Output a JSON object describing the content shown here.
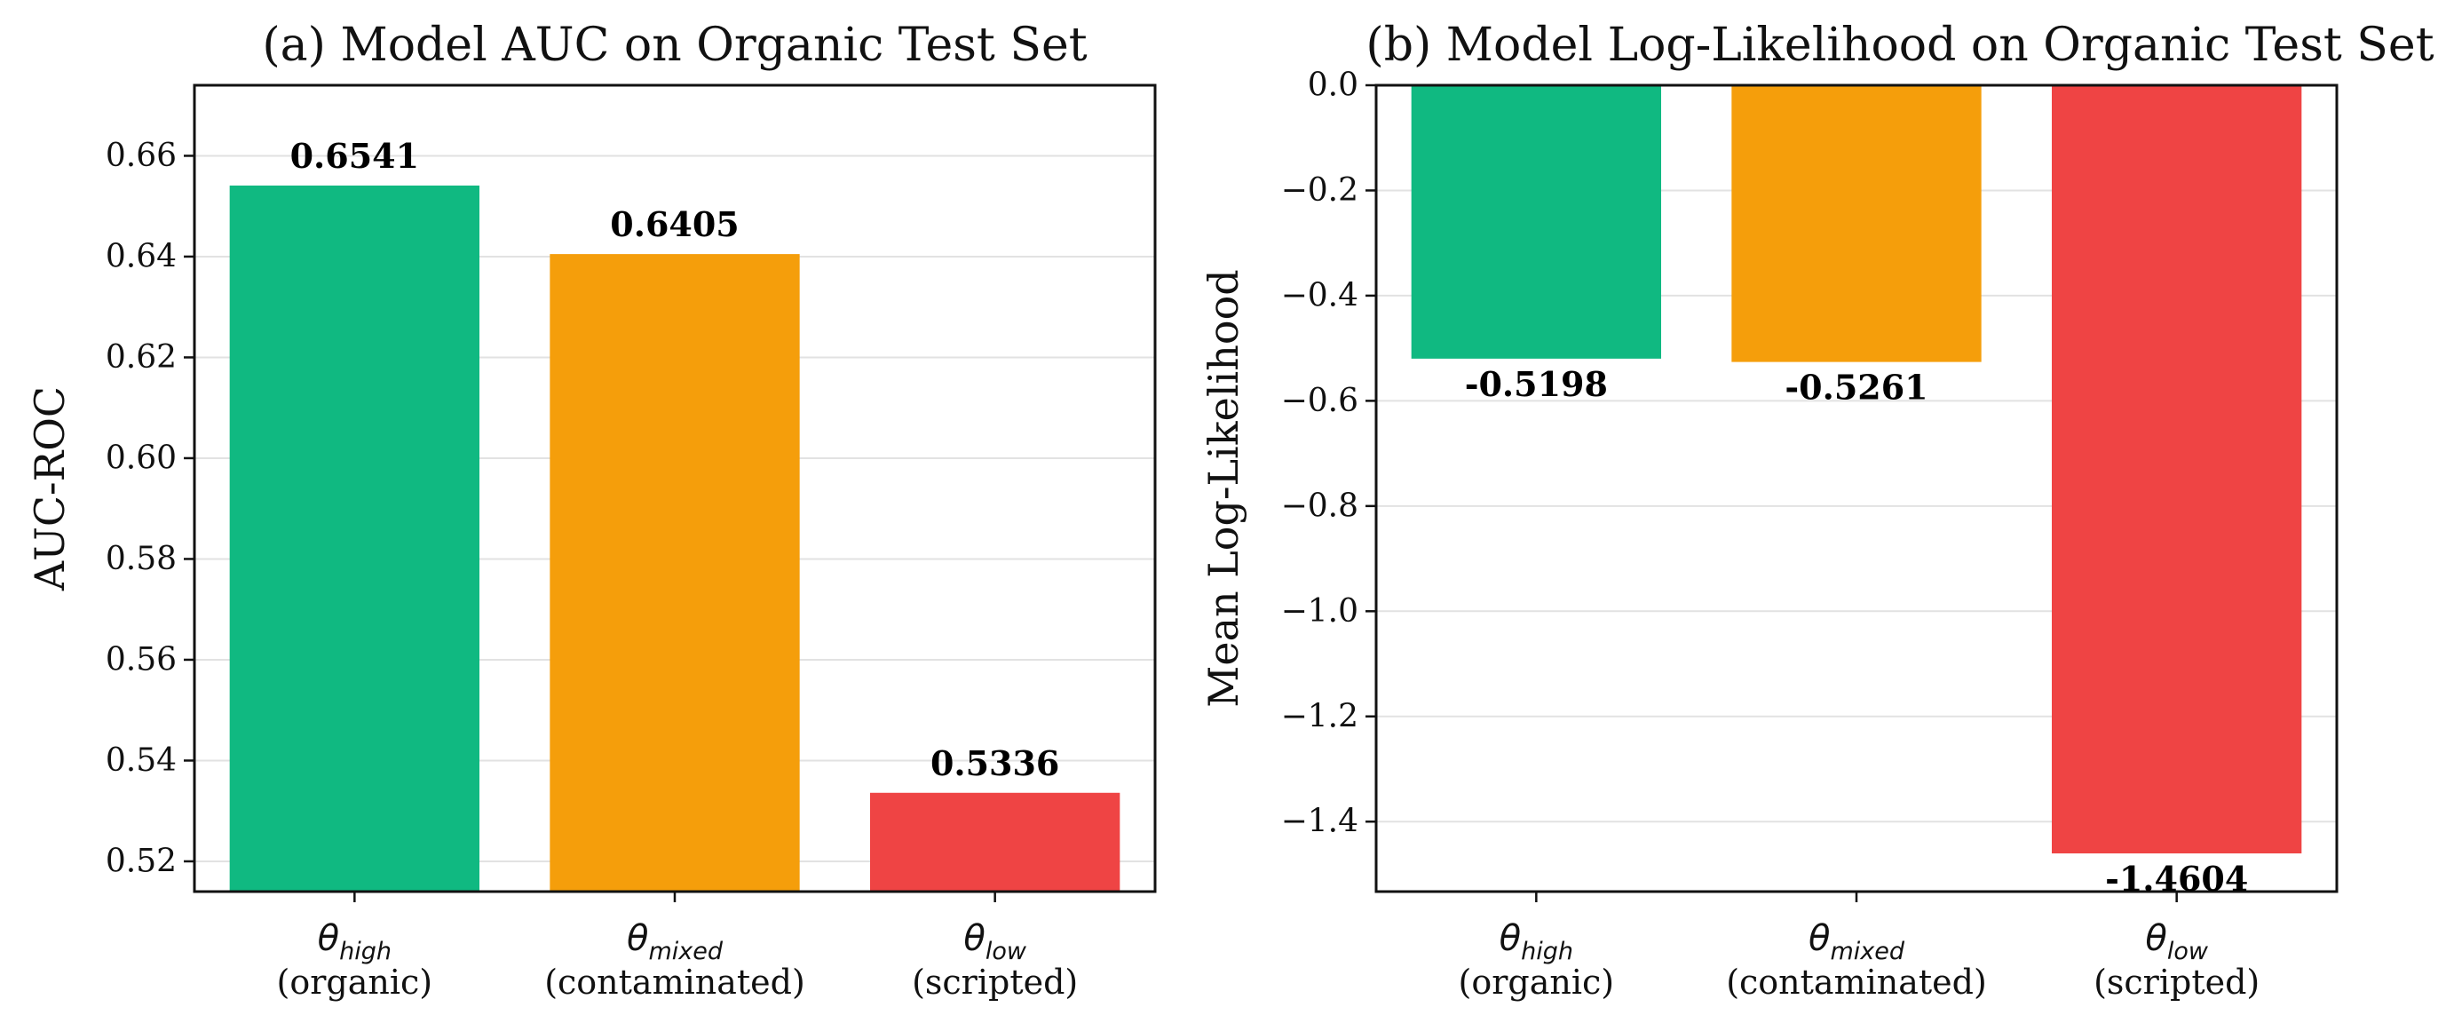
{
  "chart_data": [
    {
      "type": "bar",
      "title": "(a) Model AUC on Organic Test Set",
      "xlabel": "",
      "ylabel": "AUC-ROC",
      "categories": [
        {
          "symbol": "θ",
          "subscript": "high",
          "sublabel": "(organic)"
        },
        {
          "symbol": "θ",
          "subscript": "mixed",
          "sublabel": "(contaminated)"
        },
        {
          "symbol": "θ",
          "subscript": "low",
          "sublabel": "(scripted)"
        }
      ],
      "values": [
        0.6541,
        0.6405,
        0.5336
      ],
      "value_labels": [
        "0.6541",
        "0.6405",
        "0.5336"
      ],
      "colors": [
        "#10b981",
        "#f59e0b",
        "#ef4444"
      ],
      "ylim": [
        0.514,
        0.674
      ],
      "yticks": [
        0.52,
        0.54,
        0.56,
        0.58,
        0.6,
        0.62,
        0.64,
        0.66
      ],
      "ytick_labels": [
        "0.52",
        "0.54",
        "0.56",
        "0.58",
        "0.60",
        "0.62",
        "0.64",
        "0.66"
      ],
      "grid": true
    },
    {
      "type": "bar",
      "title": "(b) Model Log-Likelihood on Organic Test Set",
      "xlabel": "",
      "ylabel": "Mean Log-Likelihood",
      "categories": [
        {
          "symbol": "θ",
          "subscript": "high",
          "sublabel": "(organic)"
        },
        {
          "symbol": "θ",
          "subscript": "mixed",
          "sublabel": "(contaminated)"
        },
        {
          "symbol": "θ",
          "subscript": "low",
          "sublabel": "(scripted)"
        }
      ],
      "values": [
        -0.5198,
        -0.5261,
        -1.4604
      ],
      "value_labels": [
        "-0.5198",
        "-0.5261",
        "-1.4604"
      ],
      "colors": [
        "#10b981",
        "#f59e0b",
        "#ef4444"
      ],
      "ylim": [
        -1.533,
        0.0
      ],
      "yticks": [
        0.0,
        -0.2,
        -0.4,
        -0.6,
        -0.8,
        -1.0,
        -1.2,
        -1.4
      ],
      "ytick_labels": [
        "0.0",
        "−0.2",
        "−0.4",
        "−0.6",
        "−0.8",
        "−1.0",
        "−1.2",
        "−1.4"
      ],
      "grid": true
    }
  ]
}
